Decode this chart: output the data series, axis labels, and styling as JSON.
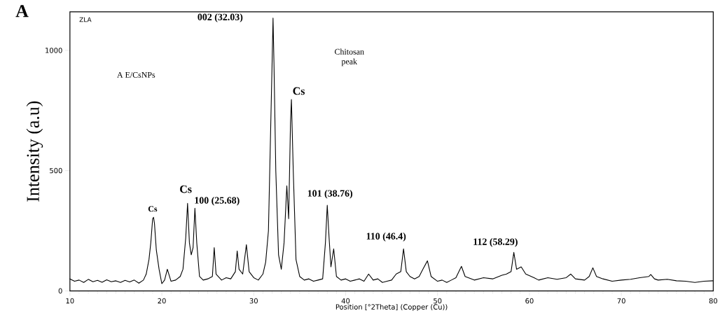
{
  "chart_data": {
    "type": "line",
    "xlabel": "Position [°2Theta] (Copper (Cu))",
    "ylabel": "Intensity (a.u)",
    "annotations": [
      "A",
      "ZLA",
      "002 (32.03)",
      "A E/CsNPs",
      "Chitosan peak",
      "Cs",
      "Cs",
      "Cs",
      "100 (25.68)",
      "101 (38.76)",
      "110 (46.4)",
      "112 (58.29)"
    ],
    "xlim": [
      10,
      80
    ],
    "ylim": [
      0,
      1160
    ],
    "xticks": [
      10,
      20,
      30,
      40,
      50,
      60,
      70,
      80
    ],
    "yticks": [
      0,
      500,
      1000
    ],
    "x": [
      10,
      10.5,
      11,
      11.5,
      12,
      12.5,
      13,
      13.5,
      14,
      14.5,
      15,
      15.5,
      16,
      16.5,
      17,
      17.5,
      18,
      18.3,
      18.6,
      18.8,
      19.0,
      19.1,
      19.2,
      19.4,
      19.7,
      20.0,
      20.3,
      20.6,
      21,
      21.5,
      22,
      22.3,
      22.6,
      22.8,
      23.0,
      23.2,
      23.4,
      23.6,
      23.8,
      24.1,
      24.5,
      25,
      25.5,
      25.7,
      25.9,
      26.5,
      27,
      27.5,
      28,
      28.2,
      28.4,
      28.8,
      29.2,
      29.5,
      30,
      30.5,
      31,
      31.3,
      31.6,
      31.8,
      32.0,
      32.1,
      32.2,
      32.4,
      32.7,
      33.0,
      33.3,
      33.6,
      33.8,
      34.0,
      34.1,
      34.3,
      34.6,
      35,
      35.5,
      36,
      36.5,
      37,
      37.5,
      37.8,
      38.0,
      38.2,
      38.4,
      38.7,
      39.0,
      39.5,
      40,
      40.5,
      41,
      41.5,
      42,
      42.5,
      43,
      43.5,
      44,
      44.5,
      45,
      45.5,
      46,
      46.3,
      46.6,
      47,
      47.5,
      48,
      48.4,
      48.9,
      49.3,
      50,
      50.5,
      51,
      51.5,
      52,
      52.6,
      53,
      54,
      55,
      56,
      57,
      57.5,
      58,
      58.3,
      58.6,
      59.1,
      59.6,
      60.5,
      61,
      62,
      63,
      64,
      64.5,
      65,
      66,
      66.5,
      66.9,
      67.3,
      68,
      69,
      70,
      71,
      72,
      73,
      73.2,
      73.6,
      74,
      75,
      76,
      77,
      78,
      79,
      80
    ],
    "series": [
      {
        "color": "#000000",
        "values": [
          50,
          40,
          45,
          35,
          48,
          38,
          44,
          36,
          46,
          38,
          42,
          35,
          44,
          37,
          45,
          32,
          45,
          70,
          130,
          200,
          300,
          306,
          280,
          170,
          90,
          30,
          45,
          90,
          40,
          45,
          60,
          90,
          220,
          364,
          200,
          150,
          180,
          344,
          200,
          60,
          45,
          50,
          60,
          180,
          70,
          45,
          55,
          50,
          80,
          166,
          90,
          70,
          192,
          80,
          55,
          45,
          70,
          120,
          250,
          600,
          950,
          1134,
          950,
          500,
          150,
          90,
          200,
          437,
          300,
          700,
          796,
          500,
          130,
          60,
          45,
          50,
          40,
          45,
          50,
          200,
          356,
          220,
          100,
          175,
          60,
          45,
          50,
          40,
          45,
          50,
          40,
          70,
          45,
          50,
          35,
          40,
          45,
          70,
          80,
          175,
          80,
          60,
          50,
          60,
          90,
          125,
          60,
          40,
          45,
          35,
          45,
          55,
          102,
          60,
          45,
          55,
          50,
          65,
          70,
          80,
          160,
          90,
          100,
          70,
          55,
          45,
          55,
          48,
          55,
          70,
          50,
          45,
          60,
          96,
          60,
          50,
          40,
          45,
          48,
          55,
          60,
          68,
          50,
          45,
          48,
          42,
          40,
          35,
          40,
          42
        ]
      }
    ]
  }
}
